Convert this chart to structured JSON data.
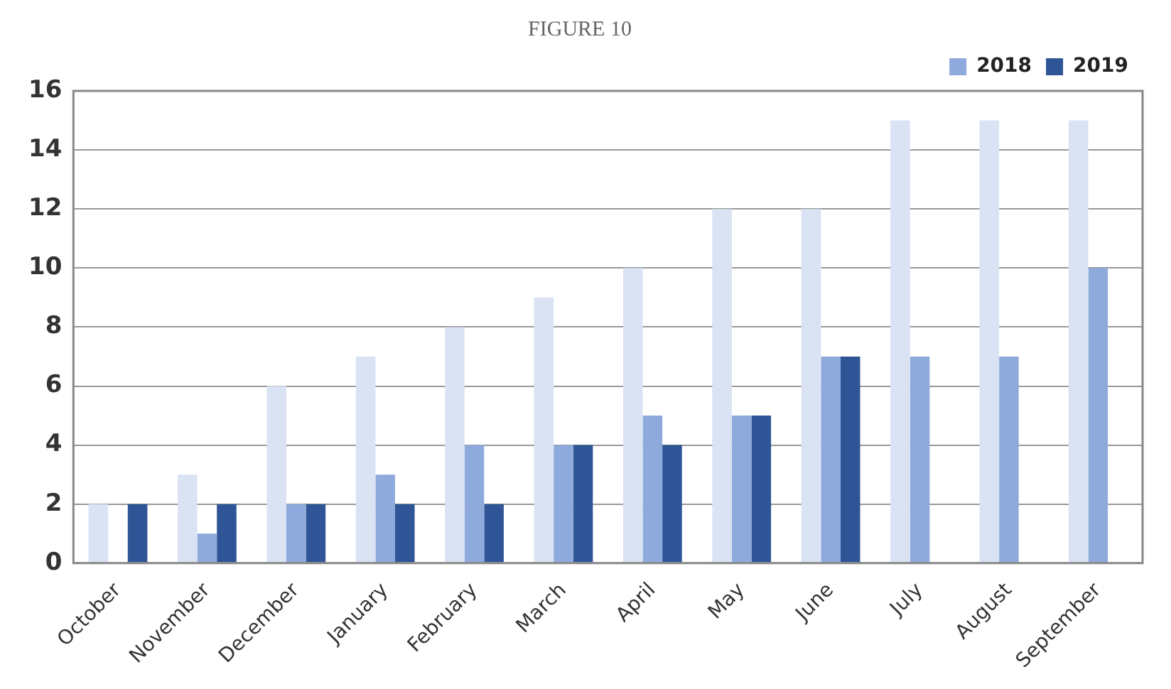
{
  "chart_data": {
    "type": "bar",
    "title": "FIGURE 10",
    "categories": [
      "October",
      "November",
      "December",
      "January",
      "February",
      "March",
      "April",
      "May",
      "June",
      "July",
      "August",
      "September"
    ],
    "series": [
      {
        "color": "#d9e3f4",
        "values": [
          2,
          3,
          6,
          7,
          8,
          9,
          10,
          12,
          12,
          15,
          15,
          15
        ]
      },
      {
        "name": "2018",
        "color": "#8eaadc",
        "values": [
          0,
          1,
          2,
          3,
          4,
          4,
          5,
          5,
          7,
          7,
          7,
          10
        ]
      },
      {
        "name": "2019",
        "color": "#2f5597",
        "values": [
          2,
          2,
          2,
          2,
          2,
          4,
          4,
          5,
          7,
          null,
          null,
          null
        ]
      }
    ],
    "ylim": [
      0,
      16
    ],
    "yticks": [
      0,
      2,
      4,
      6,
      8,
      10,
      12,
      14,
      16
    ],
    "grid": "y",
    "legend": "top right"
  }
}
